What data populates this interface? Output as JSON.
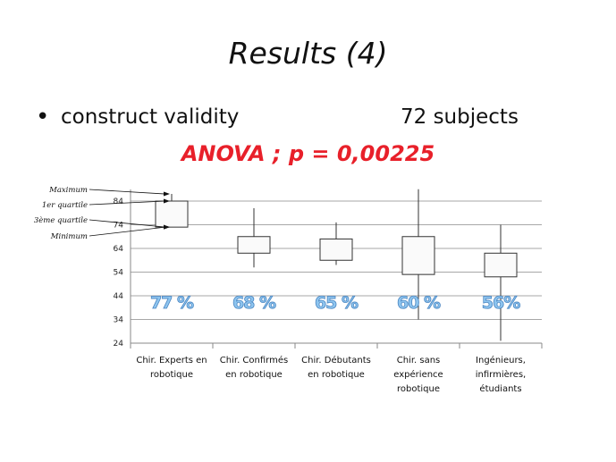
{
  "slide": {
    "title": "Results (4)",
    "bullet_symbol": "•",
    "bullet_text": "construct validity",
    "subjects": "72 subjects",
    "anova": "ANOVA ; p = 0,00225"
  },
  "chart_data": {
    "type": "boxplot",
    "categories": [
      [
        "Chir. Experts en",
        "robotique"
      ],
      [
        "Chir. Confirmés",
        "en robotique"
      ],
      [
        "Chir. Débutants",
        "en robotique"
      ],
      [
        "Chir. sans",
        "expérience",
        "robotique"
      ],
      [
        "Ingénieurs,",
        "infirmières,",
        "étudiants"
      ]
    ],
    "series": [
      {
        "min": 73,
        "q1": 73,
        "q3": 84,
        "max": 87,
        "label": "77 %"
      },
      {
        "min": 56,
        "q1": 62,
        "q3": 69,
        "max": 81,
        "label": "68 %"
      },
      {
        "min": 57,
        "q1": 59,
        "q3": 68,
        "max": 75,
        "label": "65 %"
      },
      {
        "min": 34,
        "q1": 53,
        "q3": 69,
        "max": 89,
        "label": "60 %"
      },
      {
        "min": 25,
        "q1": 52,
        "q3": 62,
        "max": 74,
        "label": "56%"
      }
    ],
    "yticks": [
      84,
      74,
      64,
      54,
      44,
      34,
      24
    ],
    "ylim": [
      24,
      89
    ],
    "legend": [
      "Maximum",
      "1er quartile",
      "3ème quartile",
      "Minimum"
    ],
    "grid": true
  },
  "colors": {
    "anova": "#e8202a",
    "percent_fill": "#8ec5ef",
    "box_fill": "#fafafa",
    "axis": "#888888"
  }
}
